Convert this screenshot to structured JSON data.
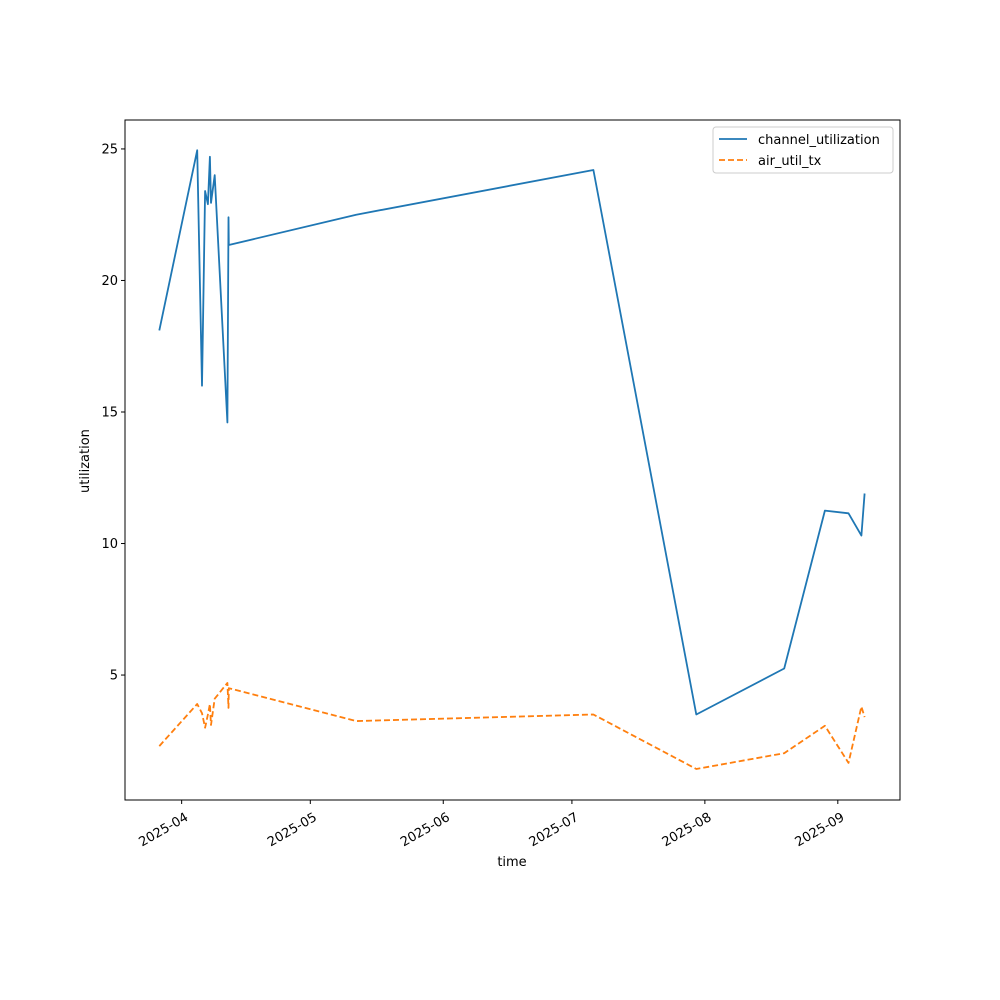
{
  "chart_data": {
    "type": "line",
    "title": "",
    "xlabel": "time",
    "ylabel": "utilization",
    "xlim": [
      "2025-03-18T19:00",
      "2025-09-15T12:00"
    ],
    "ylim": [
      0.25,
      26.1
    ],
    "x_ticks": [
      {
        "date": "2025-04-01T00:00",
        "label": "2025-04"
      },
      {
        "date": "2025-05-01T00:00",
        "label": "2025-05"
      },
      {
        "date": "2025-06-01T00:00",
        "label": "2025-06"
      },
      {
        "date": "2025-07-01T00:00",
        "label": "2025-07"
      },
      {
        "date": "2025-08-01T00:00",
        "label": "2025-08"
      },
      {
        "date": "2025-09-01T00:00",
        "label": "2025-09"
      }
    ],
    "y_ticks": [
      5,
      10,
      15,
      20,
      25
    ],
    "grid": false,
    "legend": "top-right",
    "x": [
      "2025-03-26T19:00",
      "2025-04-04T15:00",
      "2025-04-05T18:00",
      "2025-04-06T11:00",
      "2025-04-07T03:00",
      "2025-04-07T14:00",
      "2025-04-07T20:00",
      "2025-04-08T17:00",
      "2025-04-11T16:00",
      "2025-04-11T22:00",
      "2025-04-12T00:00",
      "2025-05-11T17:00",
      "2025-07-06T00:00",
      "2025-07-30T00:00",
      "2025-08-19T12:00",
      "2025-08-29T00:00",
      "2025-09-03T12:00",
      "2025-09-06T12:00",
      "2025-09-07T06:00"
    ],
    "series": [
      {
        "name": "channel_utilization",
        "color": "#1f77b4",
        "style": "solid",
        "values": [
          18.1,
          24.95,
          16.0,
          23.4,
          22.9,
          24.7,
          22.95,
          24.0,
          14.6,
          22.4,
          21.35,
          22.5,
          24.2,
          3.5,
          5.25,
          11.25,
          11.15,
          10.3,
          11.9
        ]
      },
      {
        "name": "air_util_tx",
        "color": "#ff7f0e",
        "style": "dashed",
        "values": [
          2.3,
          3.9,
          3.55,
          3.0,
          3.5,
          3.9,
          3.1,
          4.1,
          4.7,
          3.75,
          4.5,
          3.25,
          3.5,
          1.43,
          2.03,
          3.07,
          1.66,
          3.8,
          3.4
        ]
      }
    ]
  }
}
